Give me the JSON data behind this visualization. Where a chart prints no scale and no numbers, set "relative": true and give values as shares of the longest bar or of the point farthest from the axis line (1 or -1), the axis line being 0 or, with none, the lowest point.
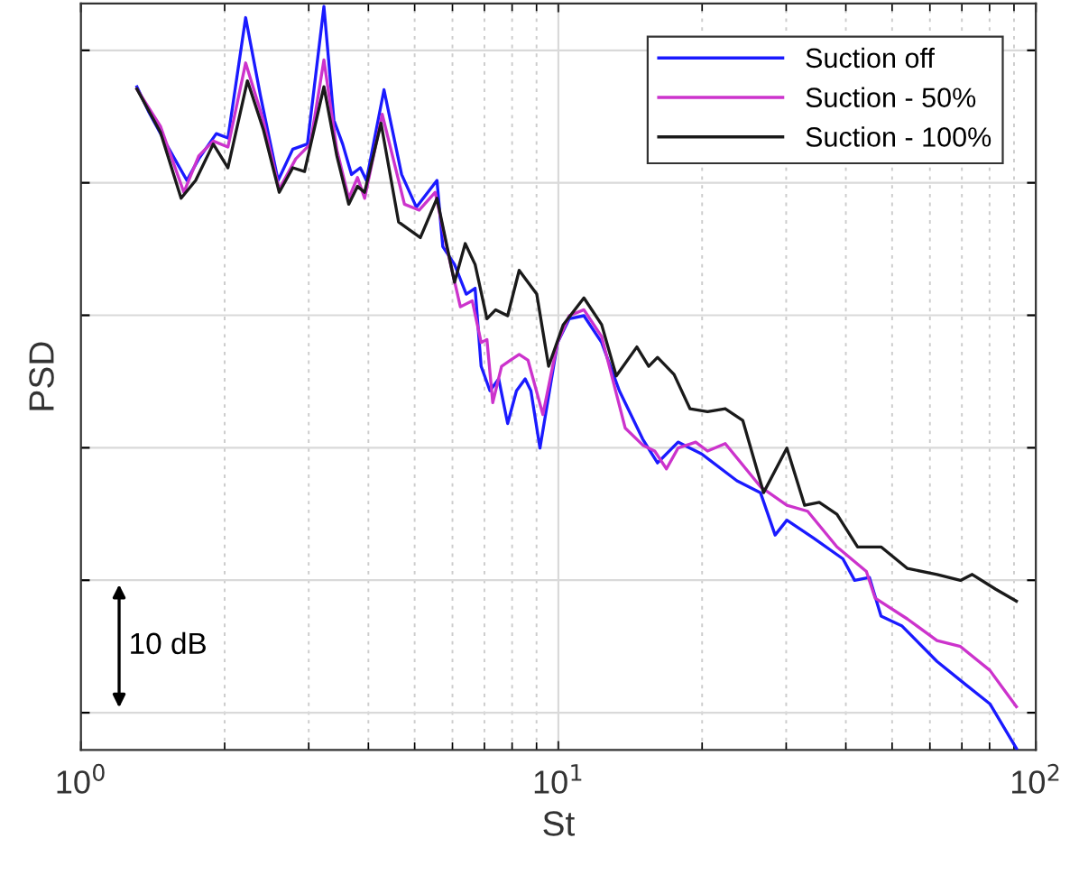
{
  "chart_data": {
    "type": "line",
    "relative": true,
    "xlabel": "St",
    "ylabel": "PSD",
    "log": "x",
    "grid": true,
    "legend": "top right",
    "marker": "none",
    "line_style": "solid",
    "xlim": [
      1,
      100
    ],
    "xticks": [
      {
        "value": 1,
        "label": "10$^{0}$"
      },
      {
        "value": 10,
        "label": "10$^{1}$"
      },
      {
        "value": 100,
        "label": "10$^{2}$"
      }
    ],
    "annotations": [
      "10 dB"
    ],
    "series": [
      {
        "name": "Suction off",
        "color": "#1a1aff",
        "x": [
          1.31,
          1.385,
          1.509,
          1.667,
          1.765,
          1.921,
          2.032,
          2.213,
          2.377,
          2.588,
          2.778,
          2.981,
          3.228,
          3.387,
          3.533,
          3.688,
          3.848,
          3.962,
          4.313,
          4.695,
          5.041,
          5.568,
          5.727,
          6.06,
          6.413,
          6.692,
          6.89,
          7.19,
          7.5,
          7.83,
          8.17,
          8.52,
          8.76,
          9.15,
          9.96,
          10.54,
          11.31,
          12.32,
          13.42,
          15.02,
          16.13,
          17.81,
          19.96,
          23.66,
          26.5,
          28.44,
          30.1,
          34.21,
          39.44,
          41.73,
          44.81,
          47.4,
          52.36,
          62.09,
          71.56,
          80.12,
          91.06
        ],
        "values": [
          0.892,
          0.859,
          0.815,
          0.766,
          0.795,
          0.829,
          0.823,
          0.985,
          0.88,
          0.766,
          0.808,
          0.815,
          1.0,
          0.847,
          0.815,
          0.774,
          0.783,
          0.766,
          0.888,
          0.774,
          0.73,
          0.766,
          0.677,
          0.653,
          0.613,
          0.621,
          0.516,
          0.483,
          0.499,
          0.439,
          0.483,
          0.499,
          0.483,
          0.406,
          0.548,
          0.58,
          0.584,
          0.548,
          0.483,
          0.418,
          0.386,
          0.414,
          0.398,
          0.362,
          0.346,
          0.289,
          0.309,
          0.285,
          0.257,
          0.228,
          0.232,
          0.18,
          0.167,
          0.119,
          0.087,
          0.062,
          0.002
        ]
      },
      {
        "name": "Suction - 50%",
        "color": "#cc33cc",
        "x": [
          1.31,
          1.467,
          1.643,
          1.765,
          1.893,
          2.032,
          2.213,
          2.409,
          2.602,
          2.818,
          3.024,
          3.228,
          3.436,
          3.638,
          3.796,
          3.928,
          4.276,
          4.76,
          5.112,
          5.521,
          5.889,
          6.234,
          6.601,
          6.89,
          7.085,
          7.287,
          7.603,
          7.932,
          8.277,
          8.64,
          9.28,
          9.96,
          10.54,
          11.31,
          12.32,
          13.8,
          15.02,
          15.91,
          16.84,
          17.81,
          19.39,
          20.53,
          22.36,
          26.5,
          30.1,
          33.27,
          38.32,
          44.17,
          46.09,
          53.85,
          62.09,
          69.52,
          80.12,
          91.06
        ],
        "values": [
          0.889,
          0.839,
          0.75,
          0.799,
          0.819,
          0.811,
          0.924,
          0.847,
          0.754,
          0.795,
          0.815,
          0.928,
          0.807,
          0.742,
          0.77,
          0.742,
          0.855,
          0.734,
          0.726,
          0.75,
          0.665,
          0.596,
          0.604,
          0.548,
          0.552,
          0.467,
          0.516,
          0.524,
          0.532,
          0.524,
          0.451,
          0.548,
          0.584,
          0.592,
          0.556,
          0.433,
          0.41,
          0.402,
          0.378,
          0.406,
          0.414,
          0.402,
          0.412,
          0.354,
          0.329,
          0.321,
          0.273,
          0.24,
          0.204,
          0.176,
          0.147,
          0.139,
          0.107,
          0.058
        ]
      },
      {
        "name": "Suction - 100%",
        "color": "#1a1a1a",
        "x": [
          1.31,
          1.467,
          1.621,
          1.739,
          1.893,
          2.032,
          2.232,
          2.409,
          2.602,
          2.778,
          2.94,
          3.228,
          3.436,
          3.638,
          3.796,
          3.928,
          4.251,
          4.628,
          5.139,
          5.568,
          6.06,
          6.38,
          6.692,
          7.085,
          7.39,
          7.83,
          8.277,
          9.01,
          9.54,
          10.24,
          11.31,
          12.32,
          13.22,
          14.6,
          15.46,
          16.13,
          17.47,
          18.86,
          20.53,
          22.36,
          24.34,
          26.9,
          30.1,
          32.79,
          35.19,
          38.32,
          42.34,
          47.4,
          53.85,
          62.09,
          69.52,
          73.58,
          82.44,
          91.06
        ],
        "values": [
          0.889,
          0.831,
          0.742,
          0.766,
          0.815,
          0.783,
          0.9,
          0.835,
          0.75,
          0.783,
          0.778,
          0.892,
          0.799,
          0.734,
          0.758,
          0.75,
          0.843,
          0.71,
          0.689,
          0.742,
          0.629,
          0.681,
          0.653,
          0.58,
          0.592,
          0.584,
          0.645,
          0.613,
          0.516,
          0.572,
          0.608,
          0.572,
          0.503,
          0.542,
          0.516,
          0.528,
          0.505,
          0.459,
          0.455,
          0.459,
          0.443,
          0.346,
          0.406,
          0.329,
          0.333,
          0.317,
          0.273,
          0.273,
          0.244,
          0.236,
          0.228,
          0.236,
          0.216,
          0.2
        ]
      }
    ]
  }
}
